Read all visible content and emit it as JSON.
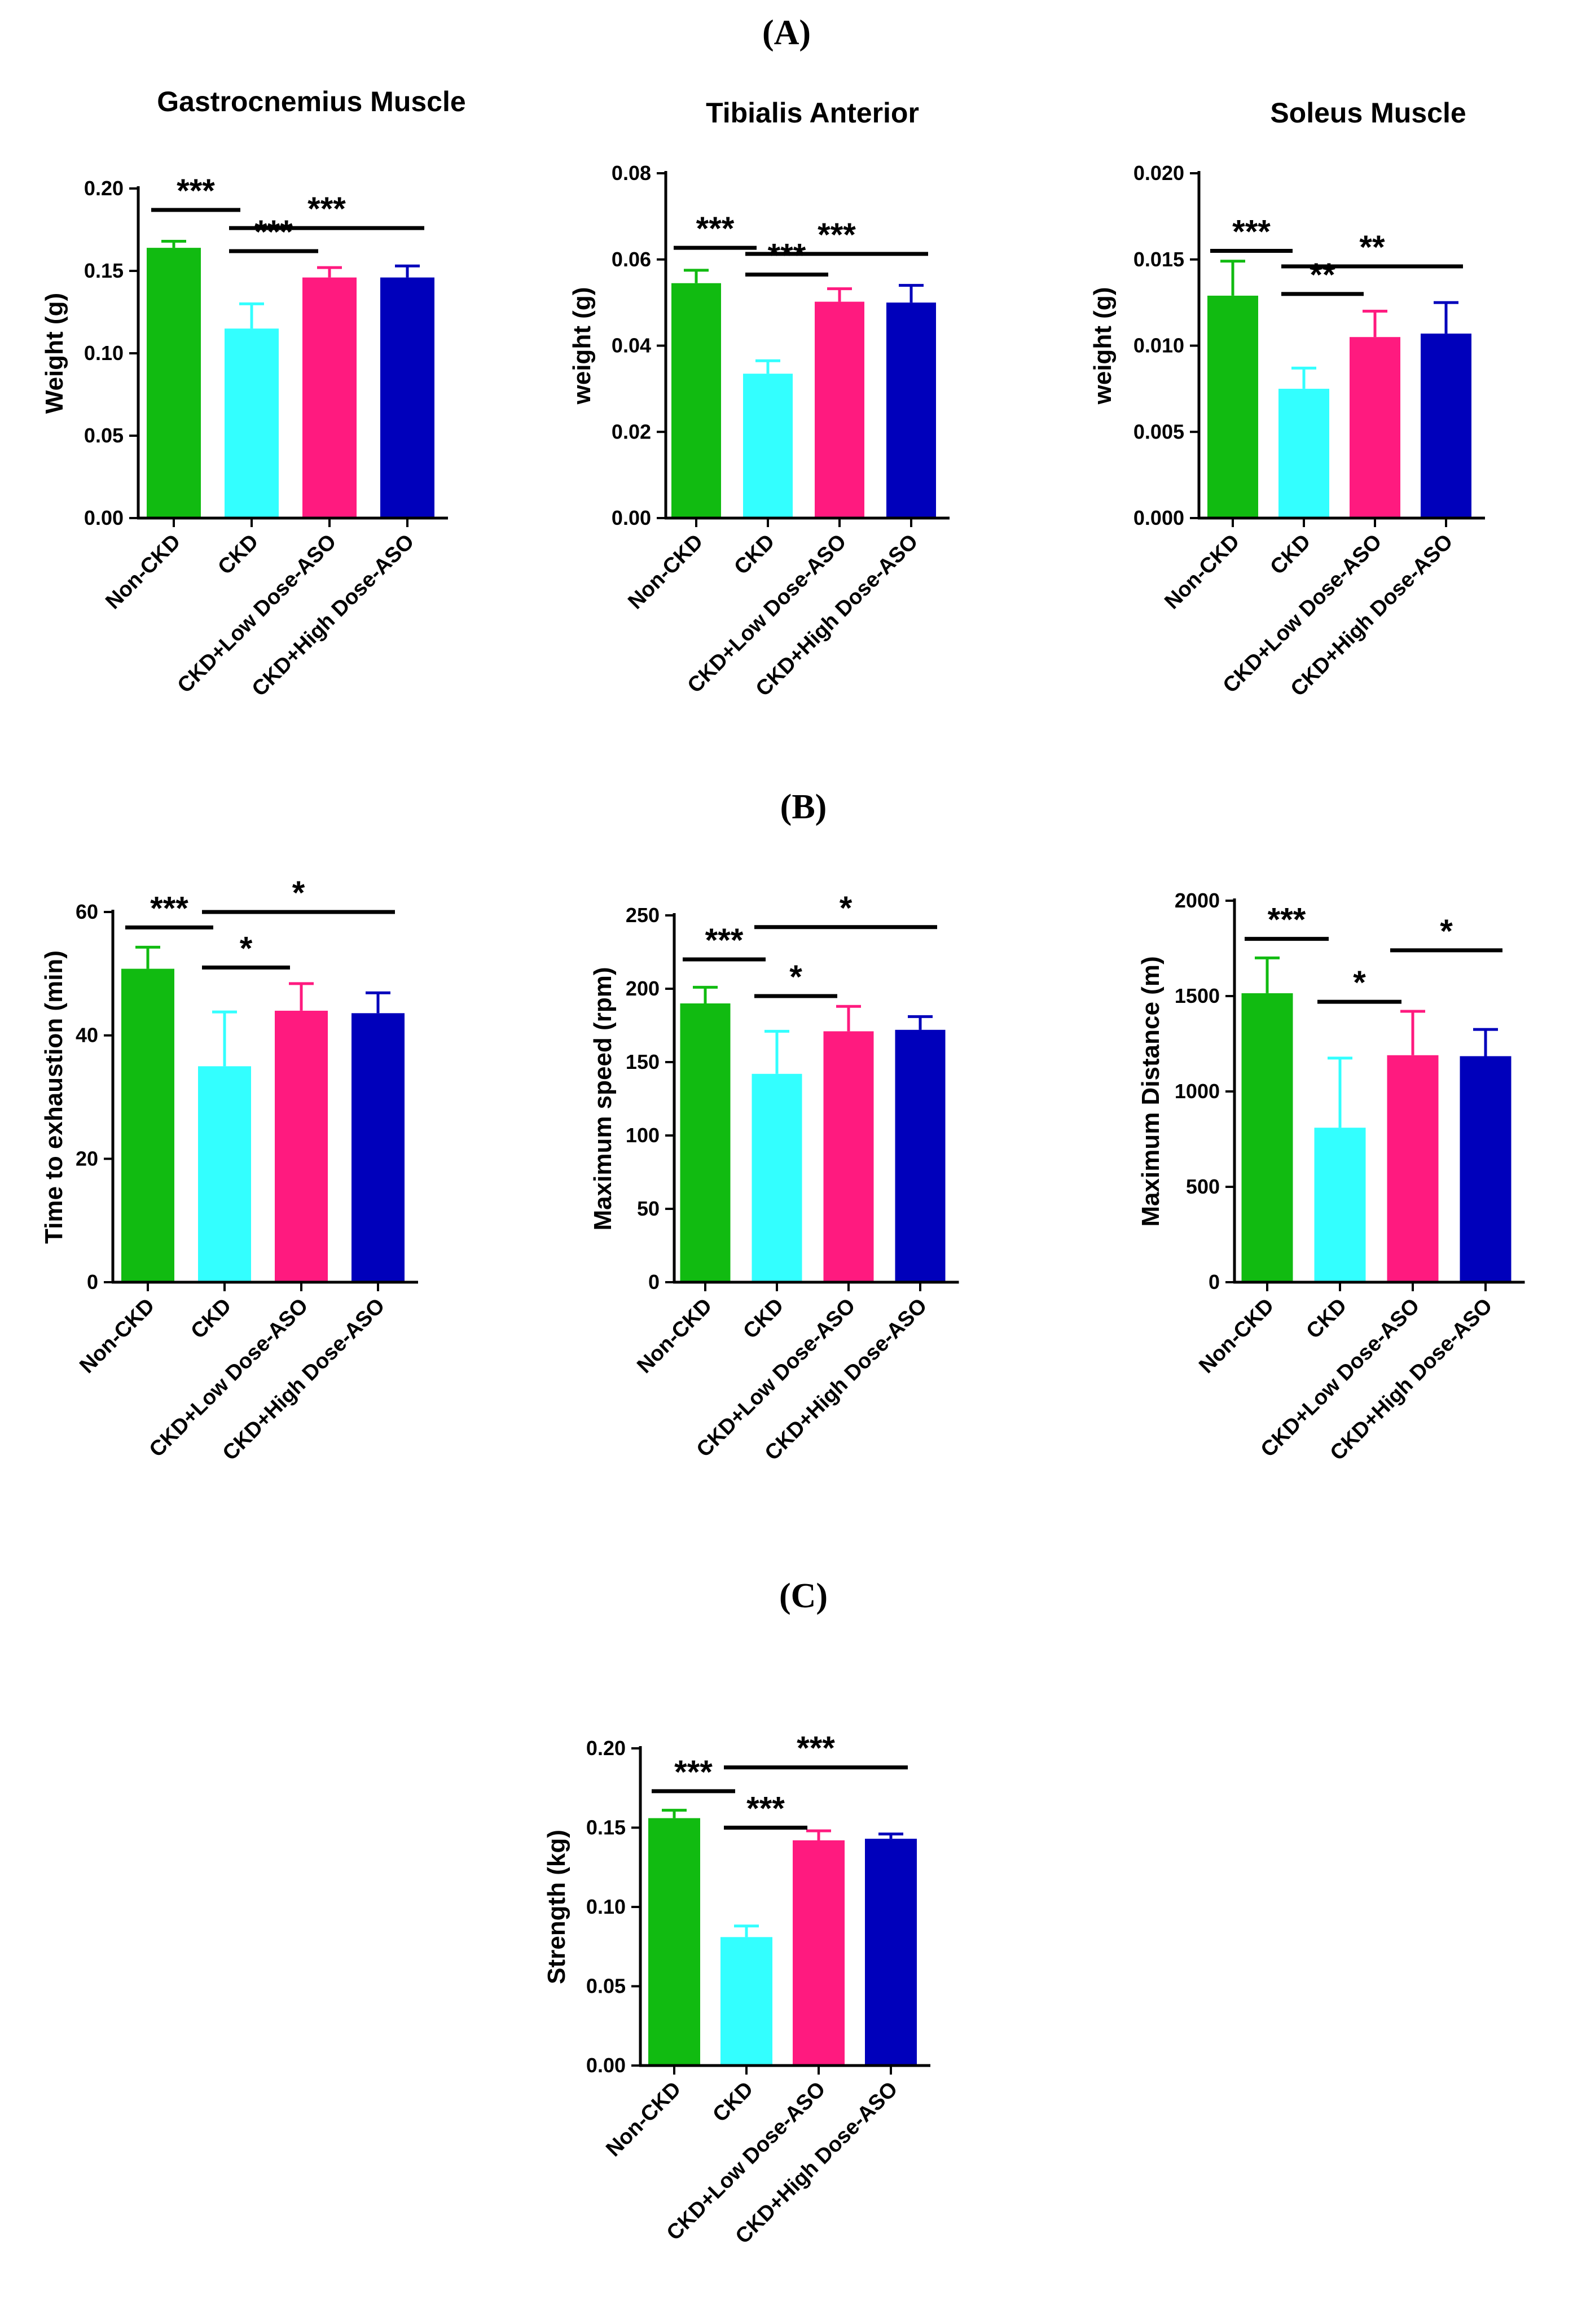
{
  "panel_labels": [
    "(A)",
    "(B)",
    "(C)"
  ],
  "chart_data": [
    {
      "type": "bar",
      "title": "Gastrocnemius Muscle",
      "ylabel": "Weight (g)",
      "categories": [
        "Non-CKD",
        "CKD",
        "CKD+Low Dose-ASO",
        "CKD+High Dose-ASO"
      ],
      "values": [
        0.164,
        0.115,
        0.146,
        0.146
      ],
      "errors": [
        0.004,
        0.015,
        0.006,
        0.007
      ],
      "colors": [
        "#11bb11",
        "#33ffff",
        "#ff1a7f",
        "#0000bb"
      ],
      "ylim": [
        0,
        0.2
      ],
      "yticks": [
        "0.00",
        "0.05",
        "0.10",
        "0.15",
        "0.20"
      ],
      "ytick_values": [
        0,
        0.05,
        0.1,
        0.15,
        0.2
      ],
      "significance": [
        {
          "from": 0,
          "to": 1,
          "label": "***"
        },
        {
          "from": 1,
          "to": 3,
          "label": "***"
        },
        {
          "from": 1,
          "to": 2,
          "label": "***"
        }
      ]
    },
    {
      "type": "bar",
      "title": "Tibialis Anterior",
      "ylabel": "weight (g)",
      "categories": [
        "Non-CKD",
        "CKD",
        "CKD+Low Dose-ASO",
        "CKD+High Dose-ASO"
      ],
      "values": [
        0.0545,
        0.0335,
        0.0502,
        0.05
      ],
      "errors": [
        0.003,
        0.003,
        0.003,
        0.004
      ],
      "colors": [
        "#11bb11",
        "#33ffff",
        "#ff1a7f",
        "#0000bb"
      ],
      "ylim": [
        0,
        0.08
      ],
      "yticks": [
        "0.00",
        "0.02",
        "0.04",
        "0.06",
        "0.08"
      ],
      "ytick_values": [
        0,
        0.02,
        0.04,
        0.06,
        0.08
      ],
      "significance": [
        {
          "from": 0,
          "to": 1,
          "label": "***"
        },
        {
          "from": 1,
          "to": 3,
          "label": "***"
        },
        {
          "from": 1,
          "to": 2,
          "label": "***"
        }
      ]
    },
    {
      "type": "bar",
      "title": "Soleus Muscle",
      "ylabel": "weight (g)",
      "categories": [
        "Non-CKD",
        "CKD",
        "CKD+Low Dose-ASO",
        "CKD+High Dose-ASO"
      ],
      "values": [
        0.0129,
        0.0075,
        0.0105,
        0.0107
      ],
      "errors": [
        0.002,
        0.0012,
        0.0015,
        0.0018
      ],
      "colors": [
        "#11bb11",
        "#33ffff",
        "#ff1a7f",
        "#0000bb"
      ],
      "ylim": [
        0,
        0.02
      ],
      "yticks": [
        "0.000",
        "0.005",
        "0.010",
        "0.015",
        "0.020"
      ],
      "ytick_values": [
        0,
        0.005,
        0.01,
        0.015,
        0.02
      ],
      "significance": [
        {
          "from": 0,
          "to": 1,
          "label": "***"
        },
        {
          "from": 1,
          "to": 3,
          "label": "**"
        },
        {
          "from": 1,
          "to": 2,
          "label": "**"
        }
      ]
    },
    {
      "type": "bar",
      "title": "",
      "ylabel": "Time to exhaustion (min)",
      "categories": [
        "Non-CKD",
        "CKD",
        "CKD+Low Dose-ASO",
        "CKD+High Dose-ASO"
      ],
      "values": [
        50.8,
        35,
        44,
        43.6
      ],
      "errors": [
        3.5,
        8.8,
        4.4,
        3.3
      ],
      "colors": [
        "#11bb11",
        "#33ffff",
        "#ff1a7f",
        "#0000bb"
      ],
      "ylim": [
        0,
        60
      ],
      "yticks": [
        "0",
        "20",
        "40",
        "60"
      ],
      "ytick_values": [
        0,
        20,
        40,
        60
      ],
      "significance": [
        {
          "from": 0,
          "to": 1,
          "label": "***"
        },
        {
          "from": 1,
          "to": 3,
          "label": "*"
        },
        {
          "from": 1,
          "to": 2,
          "label": "*"
        }
      ]
    },
    {
      "type": "bar",
      "title": "",
      "ylabel": "Maximum speed (rpm)",
      "categories": [
        "Non-CKD",
        "CKD",
        "CKD+Low Dose-ASO",
        "CKD+High Dose-ASO"
      ],
      "values": [
        190,
        142,
        171,
        172
      ],
      "errors": [
        11,
        29,
        17,
        9
      ],
      "colors": [
        "#11bb11",
        "#33ffff",
        "#ff1a7f",
        "#0000bb"
      ],
      "ylim": [
        0,
        250
      ],
      "yticks": [
        "0",
        "50",
        "100",
        "150",
        "200",
        "250"
      ],
      "ytick_values": [
        0,
        50,
        100,
        150,
        200,
        250
      ],
      "significance": [
        {
          "from": 0,
          "to": 1,
          "label": "***"
        },
        {
          "from": 1,
          "to": 3,
          "label": "*"
        },
        {
          "from": 1,
          "to": 2,
          "label": "*"
        }
      ]
    },
    {
      "type": "bar",
      "title": "",
      "ylabel": "Maximum Distance (m)",
      "categories": [
        "Non-CKD",
        "CKD",
        "CKD+Low Dose-ASO",
        "CKD+High Dose-ASO"
      ],
      "values": [
        1515,
        810,
        1190,
        1185
      ],
      "errors": [
        185,
        365,
        230,
        140
      ],
      "colors": [
        "#11bb11",
        "#33ffff",
        "#ff1a7f",
        "#0000bb"
      ],
      "ylim": [
        0,
        2000
      ],
      "yticks": [
        "0",
        "500",
        "1000",
        "1500",
        "2000"
      ],
      "ytick_values": [
        0,
        500,
        1000,
        1500,
        2000
      ],
      "significance": [
        {
          "from": 0,
          "to": 1,
          "label": "***"
        },
        {
          "from": 2,
          "to": 3,
          "label": "*"
        },
        {
          "from": 1,
          "to": 2,
          "label": "*"
        }
      ]
    },
    {
      "type": "bar",
      "title": "",
      "ylabel": "Strength (kg)",
      "categories": [
        "Non-CKD",
        "CKD",
        "CKD+Low Dose-ASO",
        "CKD+High Dose-ASO"
      ],
      "values": [
        0.156,
        0.081,
        0.142,
        0.143
      ],
      "errors": [
        0.005,
        0.007,
        0.006,
        0.003
      ],
      "colors": [
        "#11bb11",
        "#33ffff",
        "#ff1a7f",
        "#0000bb"
      ],
      "ylim": [
        0,
        0.2
      ],
      "yticks": [
        "0.00",
        "0.05",
        "0.10",
        "0.15",
        "0.20"
      ],
      "ytick_values": [
        0,
        0.05,
        0.1,
        0.15,
        0.2
      ],
      "significance": [
        {
          "from": 0,
          "to": 1,
          "label": "***"
        },
        {
          "from": 1,
          "to": 3,
          "label": "***"
        },
        {
          "from": 1,
          "to": 2,
          "label": "***"
        }
      ]
    }
  ]
}
